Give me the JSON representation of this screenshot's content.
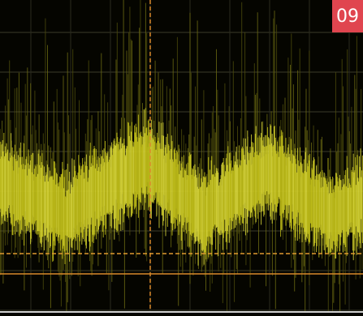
{
  "badge": "09"
}
